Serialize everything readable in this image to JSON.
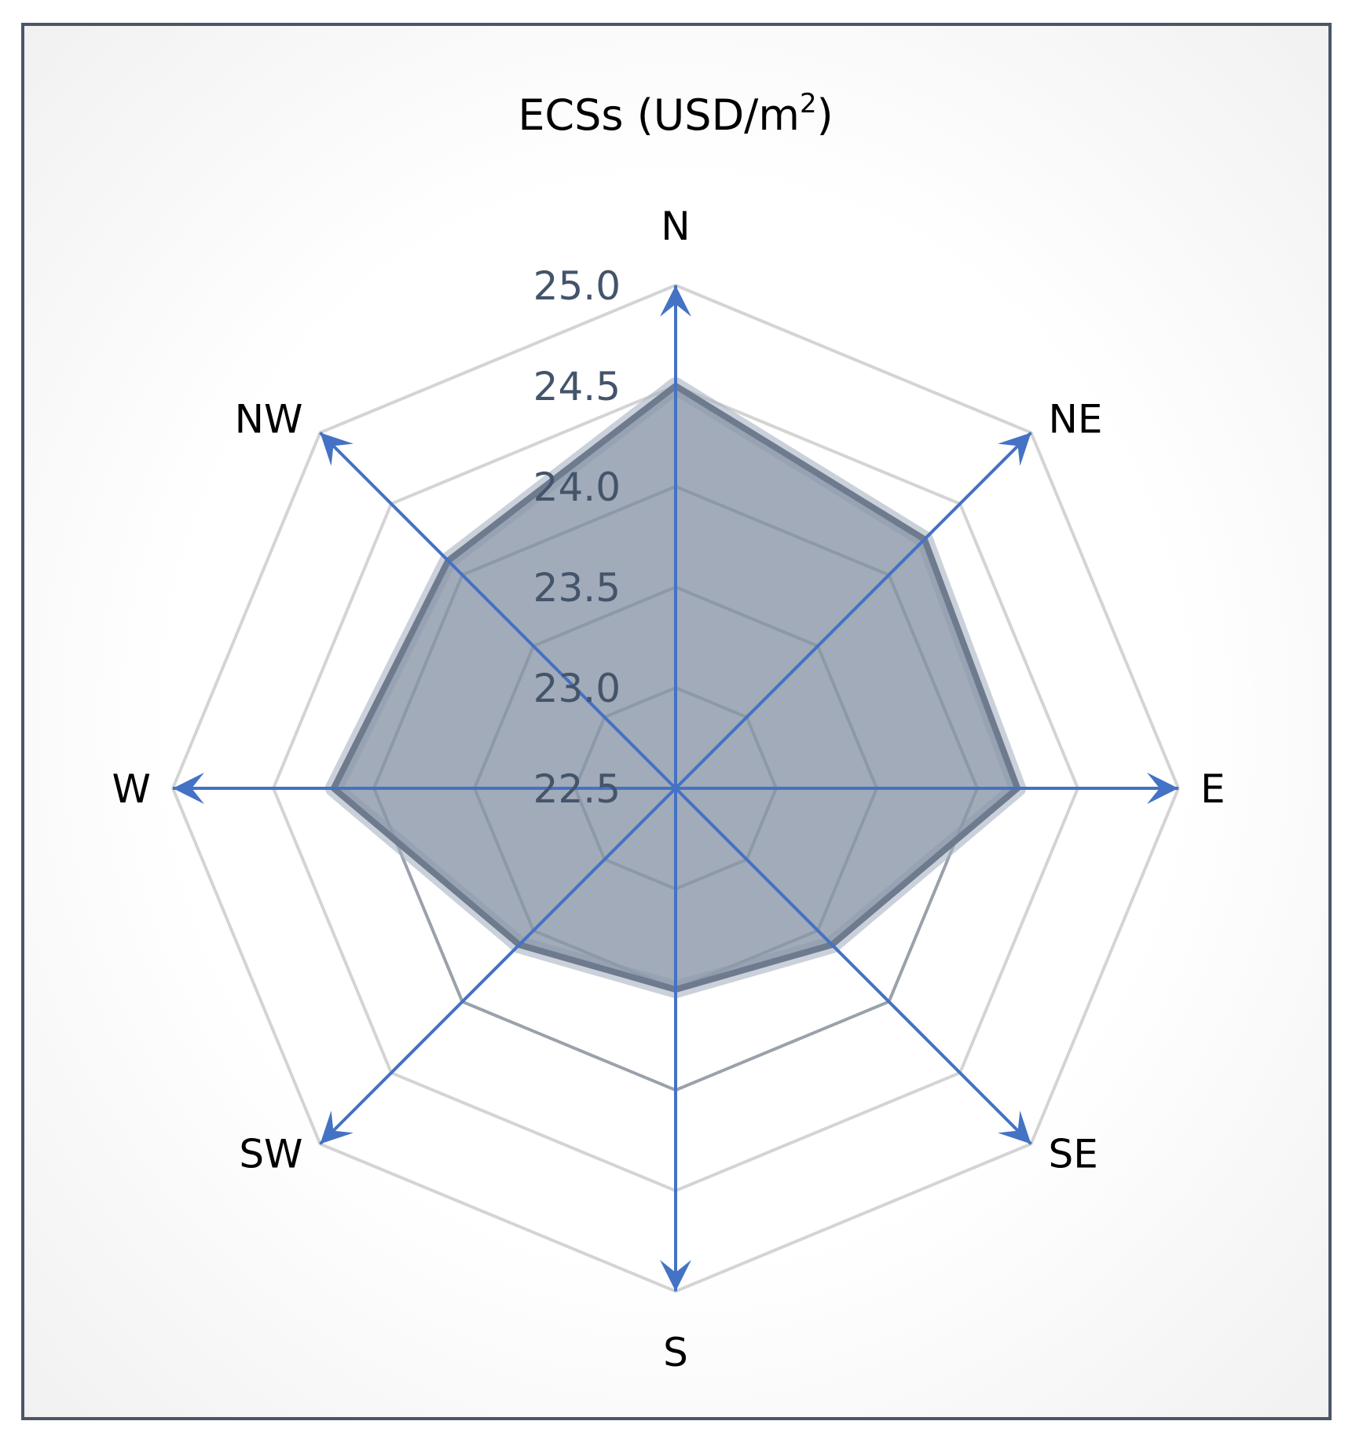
{
  "chart_data": {
    "type": "radar",
    "title": "ECSs (USD/m",
    "title_superscript": "2",
    "title_close": ")",
    "categories": [
      "N",
      "NE",
      "E",
      "SE",
      "S",
      "SW",
      "W",
      "NW"
    ],
    "series": [
      {
        "values": [
          24.5,
          24.25,
          24.2,
          23.6,
          23.5,
          23.6,
          24.2,
          24.1
        ]
      }
    ],
    "rlim": [
      22.5,
      25.0
    ],
    "ticks": [
      "22.5",
      "23.0",
      "23.5",
      "24.0",
      "24.5",
      "25.0"
    ],
    "grid": true,
    "colors": {
      "fill": "#8a96a8",
      "outline": "#6e7b8e",
      "halo": "#a9b3c1",
      "grid": "#d4d4d4",
      "grid_inner": "#9aa1ab",
      "arrows": "#4472c4",
      "tick_labels": "#44546a",
      "frame": "#4a5668"
    }
  }
}
